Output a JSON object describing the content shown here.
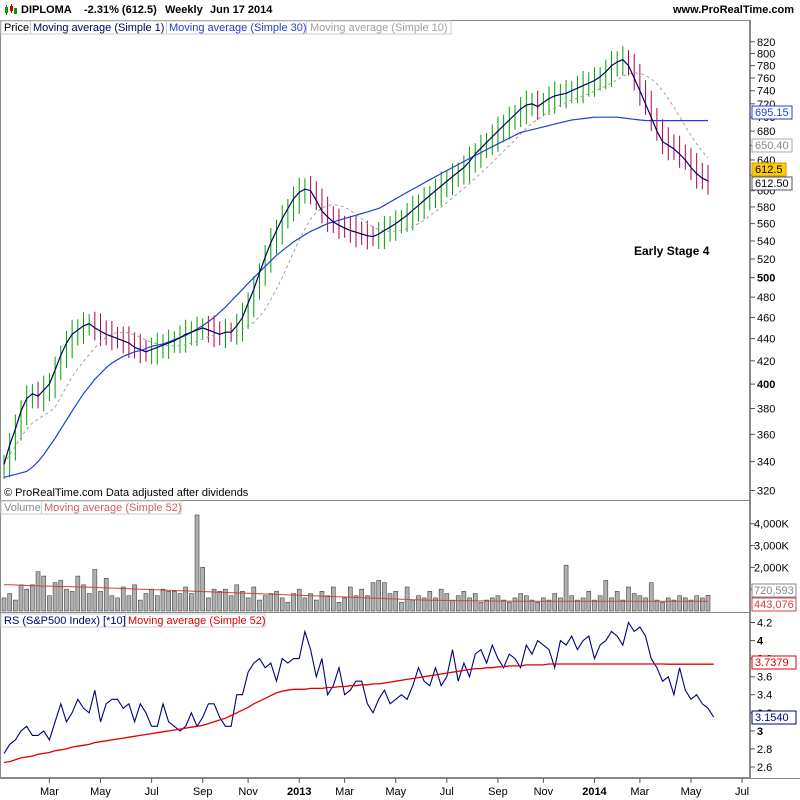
{
  "header": {
    "symbol": "DIPLOMA",
    "change": "-2.31% (612.5)",
    "period": "Weekly",
    "date": "Jun 17 2014",
    "site": "www.ProRealTime.com"
  },
  "price_legend": {
    "price": "Price",
    "ma1": "Moving average (Simple 1)",
    "ma30": "Moving average (Simple 30)",
    "ma10": "Moving average (Simple 10)"
  },
  "volume_legend": {
    "volume": "Volume",
    "ma52": "Moving average (Simple 52)"
  },
  "rs_legend": {
    "rs": "RS (S&P500 Index) [*10]",
    "ma52": "Moving average (Simple 52)"
  },
  "footer_note": "© ProRealTime.com  Data adjusted after dividends",
  "annotation": "Early Stage 4",
  "colors": {
    "up_bar": "#00a000",
    "down_bar": "#b0004a",
    "ma1": "#000066",
    "ma30": "#2040d0",
    "ma10": "#a0a0a0",
    "ma52_vol": "#d04040",
    "rs": "#000080",
    "rs_ma52": "#e00000",
    "last_price_tag": "#ffcc00"
  },
  "price_tags": {
    "ma30": "695.15",
    "ma10": "650.40",
    "last": "612.5",
    "close": "612.50"
  },
  "volume_tags": {
    "ma52": "443,076",
    "last": "720,593"
  },
  "rs_tags": {
    "ma52": "3.7379",
    "last": "3.1540"
  },
  "x_labels": [
    {
      "label": "Mar",
      "bold": false,
      "week": 8
    },
    {
      "label": "May",
      "bold": false,
      "week": 17
    },
    {
      "label": "Jul",
      "bold": false,
      "week": 26
    },
    {
      "label": "Sep",
      "bold": false,
      "week": 35
    },
    {
      "label": "Nov",
      "bold": false,
      "week": 43
    },
    {
      "label": "2013",
      "bold": true,
      "week": 52
    },
    {
      "label": "Mar",
      "bold": false,
      "week": 60
    },
    {
      "label": "May",
      "bold": false,
      "week": 69
    },
    {
      "label": "Jul",
      "bold": false,
      "week": 78
    },
    {
      "label": "Sep",
      "bold": false,
      "week": 87
    },
    {
      "label": "Nov",
      "bold": false,
      "week": 95
    },
    {
      "label": "2014",
      "bold": true,
      "week": 104
    },
    {
      "label": "Mar",
      "bold": false,
      "week": 112
    },
    {
      "label": "May",
      "bold": false,
      "week": 121
    },
    {
      "label": "Jul",
      "bold": false,
      "week": 130
    }
  ],
  "chart_data": [
    {
      "type": "line",
      "name": "price",
      "scale": "log",
      "ylim": [
        315,
        830
      ],
      "yticks": [
        {
          "v": 320,
          "label": "320"
        },
        {
          "v": 340,
          "label": "340"
        },
        {
          "v": 360,
          "label": "360"
        },
        {
          "v": 380,
          "label": "380"
        },
        {
          "v": 400,
          "label": "400",
          "bold": true
        },
        {
          "v": 420,
          "label": "420"
        },
        {
          "v": 440,
          "label": "440"
        },
        {
          "v": 460,
          "label": "460"
        },
        {
          "v": 480,
          "label": "480"
        },
        {
          "v": 500,
          "label": "500",
          "bold": true
        },
        {
          "v": 520,
          "label": "520"
        },
        {
          "v": 540,
          "label": "540"
        },
        {
          "v": 560,
          "label": "560"
        },
        {
          "v": 580,
          "label": "580"
        },
        {
          "v": 600,
          "label": "600"
        },
        {
          "v": 620,
          "label": "620"
        },
        {
          "v": 640,
          "label": "640"
        },
        {
          "v": 660,
          "label": "660"
        },
        {
          "v": 680,
          "label": "680"
        },
        {
          "v": 700,
          "label": "700"
        },
        {
          "v": 720,
          "label": "720"
        },
        {
          "v": 740,
          "label": "740"
        },
        {
          "v": 760,
          "label": "760"
        },
        {
          "v": 780,
          "label": "780"
        },
        {
          "v": 800,
          "label": "800"
        },
        {
          "v": 820,
          "label": "820"
        }
      ],
      "closes": [
        338,
        352,
        364,
        378,
        388,
        392,
        390,
        395,
        400,
        412,
        425,
        436,
        444,
        448,
        452,
        454,
        450,
        447,
        444,
        442,
        440,
        438,
        436,
        432,
        430,
        428,
        430,
        432,
        434,
        436,
        438,
        441,
        444,
        446,
        448,
        450,
        448,
        446,
        444,
        446,
        446,
        452,
        460,
        474,
        488,
        505,
        522,
        538,
        552,
        566,
        578,
        590,
        598,
        602,
        600,
        588,
        575,
        568,
        562,
        558,
        555,
        552,
        550,
        548,
        546,
        545,
        548,
        552,
        556,
        560,
        565,
        570,
        576,
        582,
        588,
        594,
        600,
        606,
        612,
        618,
        624,
        630,
        638,
        648,
        656,
        664,
        672,
        680,
        688,
        696,
        704,
        712,
        718,
        720,
        716,
        722,
        728,
        732,
        734,
        736,
        740,
        744,
        748,
        752,
        756,
        762,
        770,
        780,
        786,
        790,
        780,
        760,
        740,
        720,
        700,
        680,
        665,
        660,
        655,
        648,
        640,
        630,
        622,
        616,
        612.5
      ],
      "ma30": [
        329,
        330,
        331,
        332,
        333,
        336,
        340,
        345,
        351,
        357,
        364,
        371,
        378,
        385,
        392,
        398,
        404,
        409,
        414,
        418,
        421,
        424,
        426,
        428,
        429,
        431,
        433,
        434,
        435,
        437,
        439,
        441,
        443,
        446,
        449,
        452,
        456,
        460,
        465,
        470,
        476,
        482,
        488,
        494,
        500,
        506,
        512,
        518,
        524,
        529,
        534,
        539,
        543,
        547,
        551,
        554,
        557,
        560,
        562,
        564,
        566,
        568,
        570,
        572,
        574,
        576,
        578,
        582,
        586,
        590,
        594,
        598,
        602,
        606,
        610,
        614,
        618,
        622,
        626,
        630,
        634,
        638,
        642,
        646,
        650,
        654,
        658,
        662,
        666,
        670,
        674,
        678,
        680,
        682,
        684,
        686,
        688,
        690,
        692,
        694,
        696,
        697,
        698,
        699,
        700,
        700,
        700,
        700,
        700,
        699,
        698,
        697,
        696,
        695.15,
        695,
        695,
        695,
        695,
        695,
        695,
        695,
        695,
        695,
        695,
        695.15
      ],
      "ma10_last": 650.4,
      "x_weeks": 125
    },
    {
      "type": "bar",
      "name": "volume",
      "ylim": [
        0,
        4400000
      ],
      "yticks": [
        {
          "v": 1000000,
          "label": "1,000K"
        },
        {
          "v": 2000000,
          "label": "2,000K"
        },
        {
          "v": 3000000,
          "label": "3,000K"
        },
        {
          "v": 4000000,
          "label": "4,000K"
        }
      ],
      "values": [
        600000,
        800000,
        500000,
        1200000,
        1000000,
        1200000,
        1800000,
        1600000,
        700000,
        1300000,
        1400000,
        1000000,
        900000,
        1600000,
        1200000,
        800000,
        1900000,
        900000,
        1500000,
        700000,
        600000,
        1100000,
        700000,
        1200000,
        500000,
        800000,
        1000000,
        700000,
        1000000,
        900000,
        900000,
        800000,
        1100000,
        800000,
        4600000,
        2000000,
        600000,
        1000000,
        900000,
        1000000,
        700000,
        1200000,
        900000,
        600000,
        1100000,
        500000,
        700000,
        800000,
        900000,
        600000,
        400000,
        800000,
        1000000,
        600000,
        800000,
        500000,
        900000,
        700000,
        1100000,
        400000,
        600000,
        1100000,
        700000,
        1000000,
        700000,
        1300000,
        1400000,
        1300000,
        800000,
        900000,
        400000,
        1100000,
        500000,
        700000,
        600000,
        900000,
        600000,
        1000000,
        800000,
        500000,
        700000,
        900000,
        600000,
        800000,
        400000,
        500000,
        600000,
        700000,
        500000,
        400000,
        600000,
        800000,
        700000,
        500000,
        400000,
        600000,
        500000,
        800000,
        600000,
        2100000,
        700000,
        500000,
        600000,
        900000,
        500000,
        700000,
        1400000,
        600000,
        900000,
        500000,
        1100000,
        800000,
        700000,
        600000,
        1300000,
        500000,
        400000,
        600000,
        500000,
        700000,
        600000,
        500000,
        700000,
        600000,
        720593
      ],
      "ma52": [
        1200000,
        1200000,
        1190000,
        1180000,
        1170000,
        1160000,
        1150000,
        1140000,
        1140000,
        1130000,
        1120000,
        1120000,
        1110000,
        1100000,
        1100000,
        1090000,
        1080000,
        1070000,
        1060000,
        1050000,
        1040000,
        1030000,
        1020000,
        1010000,
        1000000,
        990000,
        980000,
        970000,
        960000,
        950000,
        940000,
        930000,
        920000,
        910000,
        900000,
        890000,
        880000,
        870000,
        860000,
        850000,
        840000,
        830000,
        820000,
        810000,
        800000,
        790000,
        780000,
        770000,
        760000,
        750000,
        740000,
        730000,
        720000,
        710000,
        700000,
        690000,
        680000,
        670000,
        660000,
        650000,
        640000,
        630000,
        620000,
        610000,
        600000,
        590000,
        580000,
        570000,
        560000,
        550000,
        540000,
        530000,
        520000,
        510000,
        500000,
        495000,
        490000,
        485000,
        480000,
        475000,
        470000,
        468000,
        466000,
        464000,
        462000,
        460000,
        458000,
        456000,
        454000,
        452000,
        450000,
        449000,
        448000,
        447000,
        446000,
        445000,
        444000,
        443500,
        443200,
        443100,
        443076,
        443076,
        443076,
        443076,
        443076,
        443076,
        443076,
        443076,
        443076,
        443076,
        443076,
        443076,
        443076,
        443076,
        443076,
        443076,
        443076,
        443076,
        443076,
        443076,
        443076,
        443076,
        443076,
        443076,
        443076
      ]
    },
    {
      "type": "line",
      "name": "rs",
      "ylim": [
        2.5,
        4.25
      ],
      "yticks": [
        {
          "v": 2.6,
          "label": "2.6"
        },
        {
          "v": 2.8,
          "label": "2.8"
        },
        {
          "v": 3.0,
          "label": "3",
          "bold": true
        },
        {
          "v": 3.2,
          "label": "3.2"
        },
        {
          "v": 3.4,
          "label": "3.4"
        },
        {
          "v": 3.6,
          "label": "3.6"
        },
        {
          "v": 3.8,
          "label": "3.8"
        },
        {
          "v": 4.0,
          "label": "4",
          "bold": true
        },
        {
          "v": 4.2,
          "label": "4.2"
        }
      ],
      "values": [
        2.75,
        2.85,
        2.9,
        3.0,
        3.05,
        2.95,
        2.95,
        3.0,
        2.9,
        3.1,
        3.3,
        3.1,
        3.2,
        3.35,
        3.25,
        3.2,
        3.45,
        3.1,
        3.3,
        3.35,
        3.35,
        3.25,
        3.3,
        3.1,
        3.3,
        3.2,
        3.05,
        3.05,
        3.3,
        3.1,
        3.05,
        3.0,
        3.05,
        3.2,
        3.05,
        3.15,
        3.3,
        3.3,
        3.15,
        3.05,
        3.05,
        3.4,
        3.4,
        3.65,
        3.75,
        3.8,
        3.7,
        3.75,
        3.55,
        3.8,
        3.75,
        3.8,
        3.8,
        4.1,
        3.9,
        3.6,
        3.8,
        3.4,
        3.5,
        3.7,
        3.4,
        3.45,
        3.55,
        3.55,
        3.3,
        3.2,
        3.35,
        3.45,
        3.3,
        3.35,
        3.4,
        3.35,
        3.5,
        3.7,
        3.55,
        3.5,
        3.7,
        3.5,
        3.6,
        3.9,
        3.55,
        3.75,
        3.6,
        3.85,
        3.9,
        3.75,
        3.95,
        3.8,
        3.7,
        3.85,
        3.8,
        3.7,
        3.95,
        3.85,
        4.0,
        3.95,
        3.9,
        3.7,
        4.0,
        3.95,
        4.05,
        3.9,
        4.0,
        4.05,
        3.8,
        3.95,
        4.0,
        4.1,
        4.05,
        3.95,
        4.2,
        4.1,
        4.15,
        4.05,
        3.8,
        3.7,
        3.55,
        3.6,
        3.4,
        3.7,
        3.45,
        3.35,
        3.4,
        3.3,
        3.25,
        3.154
      ],
      "ma52": [
        2.65,
        2.66,
        2.68,
        2.7,
        2.71,
        2.72,
        2.74,
        2.75,
        2.76,
        2.78,
        2.79,
        2.8,
        2.82,
        2.83,
        2.84,
        2.85,
        2.87,
        2.88,
        2.89,
        2.9,
        2.91,
        2.92,
        2.93,
        2.94,
        2.95,
        2.96,
        2.97,
        2.98,
        2.99,
        3.0,
        3.01,
        3.02,
        3.03,
        3.04,
        3.05,
        3.06,
        3.08,
        3.1,
        3.12,
        3.14,
        3.17,
        3.2,
        3.23,
        3.26,
        3.3,
        3.33,
        3.36,
        3.39,
        3.42,
        3.44,
        3.45,
        3.46,
        3.46,
        3.46,
        3.47,
        3.47,
        3.47,
        3.48,
        3.48,
        3.49,
        3.49,
        3.5,
        3.5,
        3.51,
        3.51,
        3.52,
        3.52,
        3.53,
        3.54,
        3.55,
        3.56,
        3.57,
        3.58,
        3.59,
        3.6,
        3.61,
        3.62,
        3.63,
        3.64,
        3.65,
        3.66,
        3.67,
        3.68,
        3.69,
        3.69,
        3.7,
        3.7,
        3.71,
        3.71,
        3.72,
        3.72,
        3.72,
        3.73,
        3.73,
        3.73,
        3.73,
        3.74,
        3.74,
        3.74,
        3.74,
        3.74,
        3.74,
        3.74,
        3.74,
        3.74,
        3.74,
        3.74,
        3.74,
        3.74,
        3.74,
        3.74,
        3.74,
        3.74,
        3.74,
        3.74,
        3.74,
        3.74,
        3.7379,
        3.7379,
        3.7379,
        3.7379,
        3.7379,
        3.7379,
        3.7379,
        3.7379,
        3.7379
      ]
    }
  ]
}
